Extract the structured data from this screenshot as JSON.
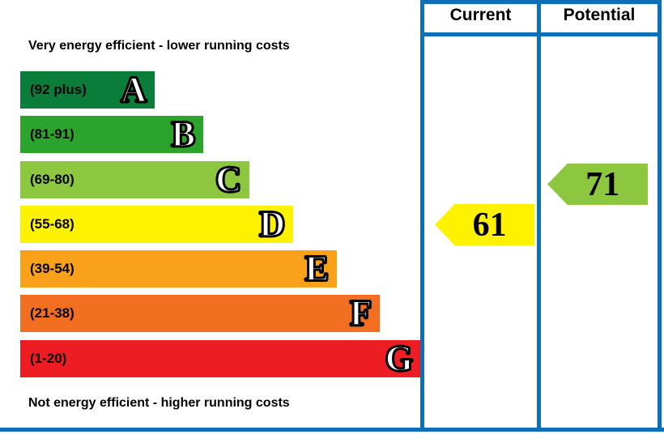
{
  "chart_data": {
    "type": "bar",
    "top_caption": "Very energy efficient - lower running costs",
    "bottom_caption": "Not energy efficient - higher running costs",
    "columns": [
      "Current",
      "Potential"
    ],
    "bands": [
      {
        "letter": "A",
        "range": "(92 plus)",
        "color": "#0a7d3b"
      },
      {
        "letter": "B",
        "range": "(81-91)",
        "color": "#2ca32c"
      },
      {
        "letter": "C",
        "range": "(69-80)",
        "color": "#8dc63f"
      },
      {
        "letter": "D",
        "range": "(55-68)",
        "color": "#fff200"
      },
      {
        "letter": "E",
        "range": "(39-54)",
        "color": "#f9a11a"
      },
      {
        "letter": "F",
        "range": "(21-38)",
        "color": "#f26f21"
      },
      {
        "letter": "G",
        "range": "(1-20)",
        "color": "#ee1c23"
      }
    ],
    "current": {
      "value": 61,
      "band": "D",
      "color": "#fff200"
    },
    "potential": {
      "value": 71,
      "band": "C",
      "color": "#8dc63f"
    },
    "border_color": "#0d6fb8"
  }
}
